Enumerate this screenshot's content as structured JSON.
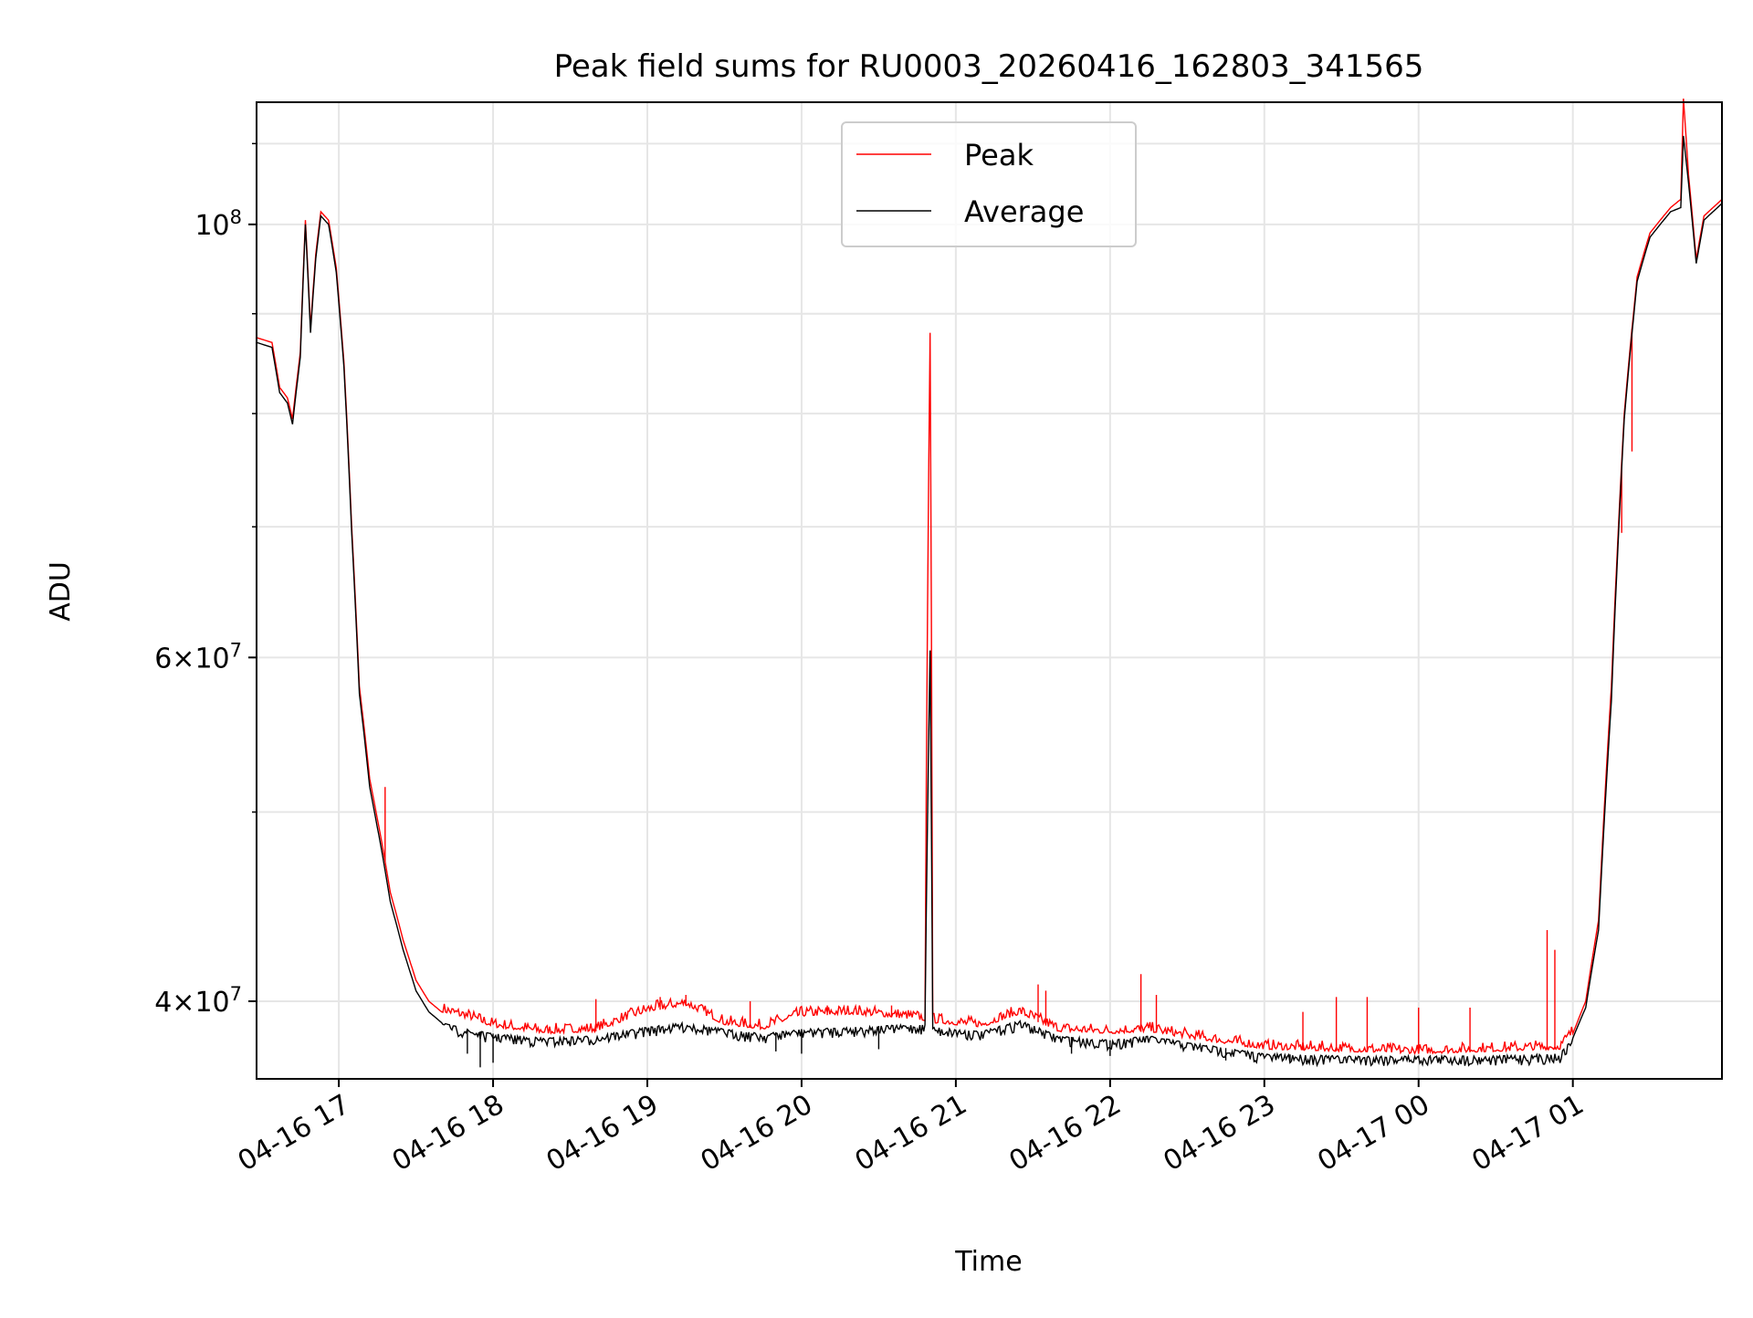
{
  "chart_data": {
    "type": "line",
    "title": "Peak field sums for RU0003_20260416_162803_341565",
    "xlabel": "Time",
    "ylabel": "ADU",
    "x_ticks": [
      "04-16 17",
      "04-16 18",
      "04-16 19",
      "04-16 20",
      "04-16 21",
      "04-16 22",
      "04-16 23",
      "04-17 00",
      "04-17 01"
    ],
    "y_ticks": [
      {
        "base": "4",
        "exp": "7",
        "value": 40000000,
        "mantissa": true
      },
      {
        "base": "6",
        "exp": "7",
        "value": 60000000,
        "mantissa": true
      },
      {
        "base": "10",
        "exp": "8",
        "value": 100000000,
        "mantissa": false
      }
    ],
    "y_scale": "log",
    "ylim": [
      36500000,
      115500000
    ],
    "xlim": [
      "2026-04-16 16:28",
      "2026-04-17 01:58"
    ],
    "grid": true,
    "legend": {
      "position": "top-center"
    },
    "series": [
      {
        "name": "Peak",
        "color": "#ff0000",
        "points": [
          [
            "2026-04-16 16:28",
            87500000
          ],
          [
            "2026-04-16 16:34",
            87000000
          ],
          [
            "2026-04-16 16:37",
            82500000
          ],
          [
            "2026-04-16 16:40",
            81500000
          ],
          [
            "2026-04-16 16:42",
            79500000
          ],
          [
            "2026-04-16 16:45",
            86000000
          ],
          [
            "2026-04-16 16:47",
            100500000
          ],
          [
            "2026-04-16 16:49",
            88500000
          ],
          [
            "2026-04-16 16:51",
            96500000
          ],
          [
            "2026-04-16 16:53",
            101500000
          ],
          [
            "2026-04-16 16:56",
            100500000
          ],
          [
            "2026-04-16 16:59",
            95000000
          ],
          [
            "2026-04-16 17:02",
            85000000
          ],
          [
            "2026-04-16 17:05",
            70000000
          ],
          [
            "2026-04-16 17:08",
            58000000
          ],
          [
            "2026-04-16 17:12",
            52000000
          ],
          [
            "2026-04-16 17:17",
            48000000
          ],
          [
            "2026-04-16 17:20",
            45500000
          ],
          [
            "2026-04-16 17:25",
            43000000
          ],
          [
            "2026-04-16 17:30",
            41000000
          ],
          [
            "2026-04-16 17:35",
            40000000
          ],
          [
            "2026-04-16 17:40",
            39500000
          ],
          [
            "2026-04-16 17:50",
            39200000
          ],
          [
            "2026-04-16 18:00",
            38800000
          ],
          [
            "2026-04-16 18:20",
            38500000
          ],
          [
            "2026-04-16 18:40",
            38600000
          ],
          [
            "2026-04-16 19:00",
            39500000
          ],
          [
            "2026-04-16 19:15",
            39800000
          ],
          [
            "2026-04-16 19:30",
            38900000
          ],
          [
            "2026-04-16 19:45",
            38700000
          ],
          [
            "2026-04-16 20:00",
            39300000
          ],
          [
            "2026-04-16 20:20",
            39400000
          ],
          [
            "2026-04-16 20:40",
            39200000
          ],
          [
            "2026-04-16 20:48",
            39100000
          ],
          [
            "2026-04-16 20:50",
            88000000
          ],
          [
            "2026-04-16 20:51",
            39000000
          ],
          [
            "2026-04-16 21:10",
            38800000
          ],
          [
            "2026-04-16 21:25",
            39400000
          ],
          [
            "2026-04-16 21:40",
            38600000
          ],
          [
            "2026-04-16 22:00",
            38500000
          ],
          [
            "2026-04-16 22:15",
            38600000
          ],
          [
            "2026-04-16 22:30",
            38300000
          ],
          [
            "2026-04-16 23:00",
            37800000
          ],
          [
            "2026-04-16 23:30",
            37700000
          ],
          [
            "2026-04-17 00:00",
            37600000
          ],
          [
            "2026-04-17 00:30",
            37700000
          ],
          [
            "2026-04-17 00:55",
            37800000
          ],
          [
            "2026-04-17 01:00",
            38500000
          ],
          [
            "2026-04-17 01:05",
            40000000
          ],
          [
            "2026-04-17 01:10",
            44000000
          ],
          [
            "2026-04-17 01:15",
            58000000
          ],
          [
            "2026-04-17 01:20",
            80000000
          ],
          [
            "2026-04-17 01:25",
            94000000
          ],
          [
            "2026-04-17 01:30",
            99000000
          ],
          [
            "2026-04-17 01:38",
            102000000
          ],
          [
            "2026-04-17 01:42",
            103000000
          ],
          [
            "2026-04-17 01:43",
            116000000
          ],
          [
            "2026-04-17 01:45",
            106000000
          ],
          [
            "2026-04-17 01:48",
            96000000
          ],
          [
            "2026-04-17 01:51",
            101000000
          ],
          [
            "2026-04-17 01:58",
            103000000
          ]
        ],
        "spikes": [
          [
            "2026-04-16 17:18",
            51500000
          ],
          [
            "2026-04-16 18:40",
            40100000
          ],
          [
            "2026-04-16 19:05",
            40200000
          ],
          [
            "2026-04-16 19:15",
            40300000
          ],
          [
            "2026-04-16 19:40",
            40000000
          ],
          [
            "2026-04-16 20:10",
            39800000
          ],
          [
            "2026-04-16 20:35",
            39800000
          ],
          [
            "2026-04-16 21:32",
            40800000
          ],
          [
            "2026-04-16 21:35",
            40500000
          ],
          [
            "2026-04-16 22:12",
            41300000
          ],
          [
            "2026-04-16 22:18",
            40300000
          ],
          [
            "2026-04-16 23:15",
            39500000
          ],
          [
            "2026-04-16 23:28",
            40200000
          ],
          [
            "2026-04-16 23:40",
            40200000
          ],
          [
            "2026-04-17 00:00",
            39700000
          ],
          [
            "2026-04-17 00:20",
            39700000
          ],
          [
            "2026-04-17 00:50",
            43500000
          ],
          [
            "2026-04-17 00:53",
            42500000
          ],
          [
            "2026-04-17 01:16",
            61800000
          ],
          [
            "2026-04-17 01:19",
            69500000
          ],
          [
            "2026-04-17 01:23",
            76500000
          ],
          [
            "2026-04-17 01:28",
            97000000
          ]
        ]
      },
      {
        "name": "Average",
        "color": "#000000",
        "points": [
          [
            "2026-04-16 16:28",
            87000000
          ],
          [
            "2026-04-16 16:34",
            86500000
          ],
          [
            "2026-04-16 16:37",
            82000000
          ],
          [
            "2026-04-16 16:40",
            81000000
          ],
          [
            "2026-04-16 16:42",
            79000000
          ],
          [
            "2026-04-16 16:45",
            85500000
          ],
          [
            "2026-04-16 16:47",
            100000000
          ],
          [
            "2026-04-16 16:49",
            88000000
          ],
          [
            "2026-04-16 16:51",
            96000000
          ],
          [
            "2026-04-16 16:53",
            101000000
          ],
          [
            "2026-04-16 16:56",
            100000000
          ],
          [
            "2026-04-16 16:59",
            94500000
          ],
          [
            "2026-04-16 17:02",
            84500000
          ],
          [
            "2026-04-16 17:05",
            69500000
          ],
          [
            "2026-04-16 17:08",
            57500000
          ],
          [
            "2026-04-16 17:12",
            51500000
          ],
          [
            "2026-04-16 17:17",
            47500000
          ],
          [
            "2026-04-16 17:20",
            45000000
          ],
          [
            "2026-04-16 17:25",
            42500000
          ],
          [
            "2026-04-16 17:30",
            40500000
          ],
          [
            "2026-04-16 17:35",
            39500000
          ],
          [
            "2026-04-16 17:40",
            39000000
          ],
          [
            "2026-04-16 17:50",
            38700000
          ],
          [
            "2026-04-16 18:00",
            38500000
          ],
          [
            "2026-04-16 18:20",
            38300000
          ],
          [
            "2026-04-16 18:40",
            38400000
          ],
          [
            "2026-04-16 19:00",
            38800000
          ],
          [
            "2026-04-16 19:15",
            39000000
          ],
          [
            "2026-04-16 19:30",
            38700000
          ],
          [
            "2026-04-16 19:45",
            38500000
          ],
          [
            "2026-04-16 20:00",
            38700000
          ],
          [
            "2026-04-16 20:20",
            38800000
          ],
          [
            "2026-04-16 20:40",
            38900000
          ],
          [
            "2026-04-16 20:48",
            38900000
          ],
          [
            "2026-04-16 20:50",
            60500000
          ],
          [
            "2026-04-16 20:51",
            38800000
          ],
          [
            "2026-04-16 21:10",
            38600000
          ],
          [
            "2026-04-16 21:25",
            39100000
          ],
          [
            "2026-04-16 21:40",
            38400000
          ],
          [
            "2026-04-16 22:00",
            38200000
          ],
          [
            "2026-04-16 22:15",
            38400000
          ],
          [
            "2026-04-16 22:30",
            38100000
          ],
          [
            "2026-04-16 23:00",
            37600000
          ],
          [
            "2026-04-16 23:30",
            37500000
          ],
          [
            "2026-04-17 00:00",
            37500000
          ],
          [
            "2026-04-17 00:30",
            37500000
          ],
          [
            "2026-04-17 00:55",
            37600000
          ],
          [
            "2026-04-17 01:00",
            38300000
          ],
          [
            "2026-04-17 01:05",
            39700000
          ],
          [
            "2026-04-17 01:10",
            43500000
          ],
          [
            "2026-04-17 01:15",
            57000000
          ],
          [
            "2026-04-17 01:20",
            79500000
          ],
          [
            "2026-04-17 01:25",
            93500000
          ],
          [
            "2026-04-17 01:30",
            98500000
          ],
          [
            "2026-04-17 01:38",
            101500000
          ],
          [
            "2026-04-17 01:42",
            102000000
          ],
          [
            "2026-04-17 01:43",
            111000000
          ],
          [
            "2026-04-17 01:45",
            105000000
          ],
          [
            "2026-04-17 01:48",
            95500000
          ],
          [
            "2026-04-17 01:51",
            100500000
          ],
          [
            "2026-04-17 01:58",
            102500000
          ]
        ],
        "dips": [
          [
            "2026-04-16 17:50",
            37600000
          ],
          [
            "2026-04-16 17:55",
            37000000
          ],
          [
            "2026-04-16 18:00",
            37200000
          ],
          [
            "2026-04-16 19:50",
            37700000
          ],
          [
            "2026-04-16 20:00",
            37600000
          ],
          [
            "2026-04-16 20:30",
            37800000
          ],
          [
            "2026-04-16 21:45",
            37600000
          ],
          [
            "2026-04-16 22:00",
            37500000
          ],
          [
            "2026-04-16 22:45",
            37300000
          ],
          [
            "2026-04-16 23:10",
            37300000
          ],
          [
            "2026-04-17 00:00",
            37400000
          ]
        ]
      }
    ]
  }
}
